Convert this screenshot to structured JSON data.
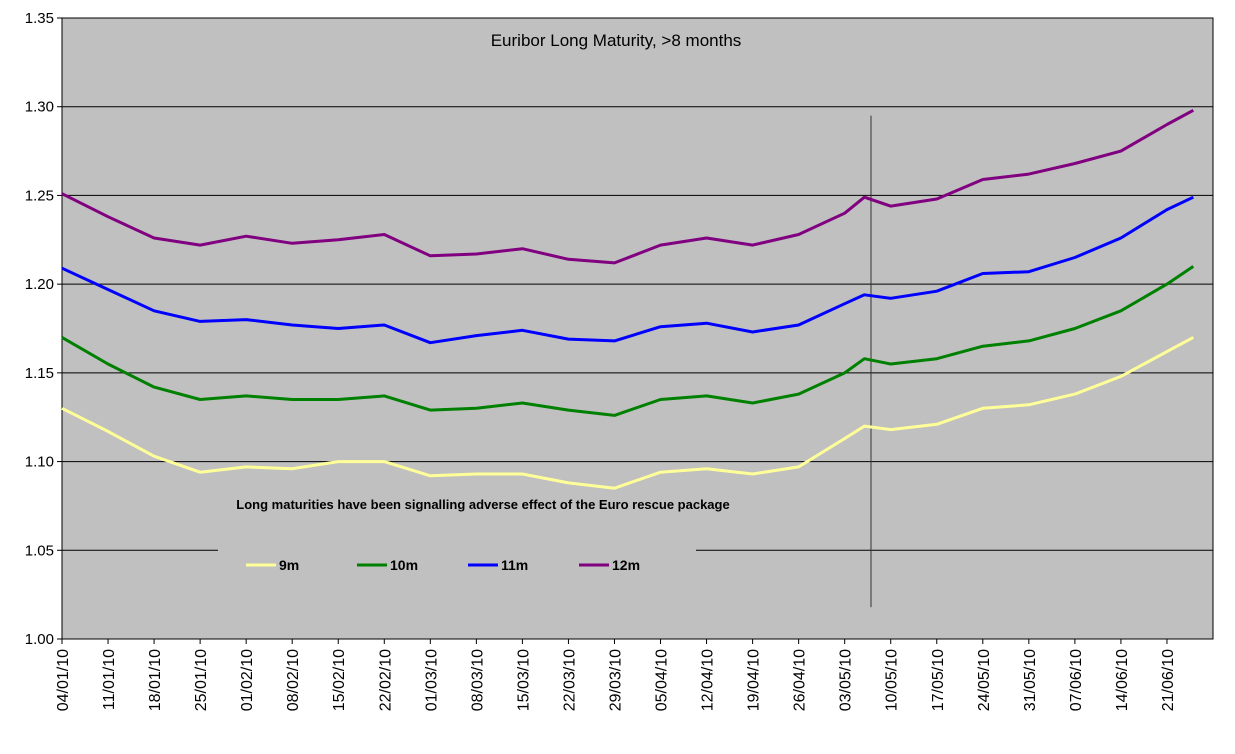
{
  "chart_data": {
    "type": "line",
    "title": "Euribor Long Maturity, >8 months",
    "annotation": "Long maturities have been signalling adverse effect of the Euro rescue package",
    "ylim": [
      1.0,
      1.35
    ],
    "y_ticks": [
      "1.00",
      "1.05",
      "1.10",
      "1.15",
      "1.20",
      "1.25",
      "1.30",
      "1.35"
    ],
    "x_tick_labels": [
      "04/01/10",
      "11/01/10",
      "18/01/10",
      "25/01/10",
      "01/02/10",
      "08/02/10",
      "15/02/10",
      "22/02/10",
      "01/03/10",
      "08/03/10",
      "15/03/10",
      "22/03/10",
      "29/03/10",
      "05/04/10",
      "12/04/10",
      "19/04/10",
      "26/04/10",
      "03/05/10",
      "10/05/10",
      "17/05/10",
      "24/05/10",
      "31/05/10",
      "07/06/10",
      "14/06/10",
      "21/06/10"
    ],
    "plot_background": "#c0c0c0",
    "grid": true,
    "legend_position": "bottom-left inside plot",
    "marker_line_date": "07/05/10",
    "series": [
      {
        "name": "9m",
        "color": "#ffff99",
        "points": [
          [
            "04/01/10",
            1.13
          ],
          [
            "11/01/10",
            1.117
          ],
          [
            "18/01/10",
            1.103
          ],
          [
            "25/01/10",
            1.094
          ],
          [
            "01/02/10",
            1.097
          ],
          [
            "08/02/10",
            1.096
          ],
          [
            "15/02/10",
            1.1
          ],
          [
            "22/02/10",
            1.1
          ],
          [
            "01/03/10",
            1.092
          ],
          [
            "08/03/10",
            1.093
          ],
          [
            "15/03/10",
            1.093
          ],
          [
            "22/03/10",
            1.088
          ],
          [
            "29/03/10",
            1.085
          ],
          [
            "05/04/10",
            1.094
          ],
          [
            "12/04/10",
            1.096
          ],
          [
            "19/04/10",
            1.093
          ],
          [
            "26/04/10",
            1.097
          ],
          [
            "03/05/10",
            1.113
          ],
          [
            "06/05/10",
            1.12
          ],
          [
            "10/05/10",
            1.118
          ],
          [
            "17/05/10",
            1.121
          ],
          [
            "24/05/10",
            1.13
          ],
          [
            "31/05/10",
            1.132
          ],
          [
            "07/06/10",
            1.138
          ],
          [
            "14/06/10",
            1.148
          ],
          [
            "21/06/10",
            1.162
          ],
          [
            "25/06/10",
            1.17
          ]
        ]
      },
      {
        "name": "10m",
        "color": "#008000",
        "points": [
          [
            "04/01/10",
            1.17
          ],
          [
            "11/01/10",
            1.155
          ],
          [
            "18/01/10",
            1.142
          ],
          [
            "25/01/10",
            1.135
          ],
          [
            "01/02/10",
            1.137
          ],
          [
            "08/02/10",
            1.135
          ],
          [
            "15/02/10",
            1.135
          ],
          [
            "22/02/10",
            1.137
          ],
          [
            "01/03/10",
            1.129
          ],
          [
            "08/03/10",
            1.13
          ],
          [
            "15/03/10",
            1.133
          ],
          [
            "22/03/10",
            1.129
          ],
          [
            "29/03/10",
            1.126
          ],
          [
            "05/04/10",
            1.135
          ],
          [
            "12/04/10",
            1.137
          ],
          [
            "19/04/10",
            1.133
          ],
          [
            "26/04/10",
            1.138
          ],
          [
            "03/05/10",
            1.15
          ],
          [
            "06/05/10",
            1.158
          ],
          [
            "10/05/10",
            1.155
          ],
          [
            "17/05/10",
            1.158
          ],
          [
            "24/05/10",
            1.165
          ],
          [
            "31/05/10",
            1.168
          ],
          [
            "07/06/10",
            1.175
          ],
          [
            "14/06/10",
            1.185
          ],
          [
            "21/06/10",
            1.2
          ],
          [
            "25/06/10",
            1.21
          ]
        ]
      },
      {
        "name": "11m",
        "color": "#0000ff",
        "points": [
          [
            "04/01/10",
            1.209
          ],
          [
            "11/01/10",
            1.197
          ],
          [
            "18/01/10",
            1.185
          ],
          [
            "25/01/10",
            1.179
          ],
          [
            "01/02/10",
            1.18
          ],
          [
            "08/02/10",
            1.177
          ],
          [
            "15/02/10",
            1.175
          ],
          [
            "22/02/10",
            1.177
          ],
          [
            "01/03/10",
            1.167
          ],
          [
            "08/03/10",
            1.171
          ],
          [
            "15/03/10",
            1.174
          ],
          [
            "22/03/10",
            1.169
          ],
          [
            "29/03/10",
            1.168
          ],
          [
            "05/04/10",
            1.176
          ],
          [
            "12/04/10",
            1.178
          ],
          [
            "19/04/10",
            1.173
          ],
          [
            "26/04/10",
            1.177
          ],
          [
            "03/05/10",
            1.189
          ],
          [
            "06/05/10",
            1.194
          ],
          [
            "10/05/10",
            1.192
          ],
          [
            "17/05/10",
            1.196
          ],
          [
            "24/05/10",
            1.206
          ],
          [
            "31/05/10",
            1.207
          ],
          [
            "07/06/10",
            1.215
          ],
          [
            "14/06/10",
            1.226
          ],
          [
            "21/06/10",
            1.242
          ],
          [
            "25/06/10",
            1.249
          ]
        ]
      },
      {
        "name": "12m",
        "color": "#800080",
        "points": [
          [
            "04/01/10",
            1.251
          ],
          [
            "11/01/10",
            1.238
          ],
          [
            "18/01/10",
            1.226
          ],
          [
            "25/01/10",
            1.222
          ],
          [
            "01/02/10",
            1.227
          ],
          [
            "08/02/10",
            1.223
          ],
          [
            "15/02/10",
            1.225
          ],
          [
            "22/02/10",
            1.228
          ],
          [
            "01/03/10",
            1.216
          ],
          [
            "08/03/10",
            1.217
          ],
          [
            "15/03/10",
            1.22
          ],
          [
            "22/03/10",
            1.214
          ],
          [
            "29/03/10",
            1.212
          ],
          [
            "05/04/10",
            1.222
          ],
          [
            "12/04/10",
            1.226
          ],
          [
            "19/04/10",
            1.222
          ],
          [
            "26/04/10",
            1.228
          ],
          [
            "03/05/10",
            1.24
          ],
          [
            "06/05/10",
            1.249
          ],
          [
            "10/05/10",
            1.244
          ],
          [
            "17/05/10",
            1.248
          ],
          [
            "24/05/10",
            1.259
          ],
          [
            "31/05/10",
            1.262
          ],
          [
            "07/06/10",
            1.268
          ],
          [
            "14/06/10",
            1.275
          ],
          [
            "21/06/10",
            1.29
          ],
          [
            "25/06/10",
            1.298
          ]
        ]
      }
    ]
  }
}
